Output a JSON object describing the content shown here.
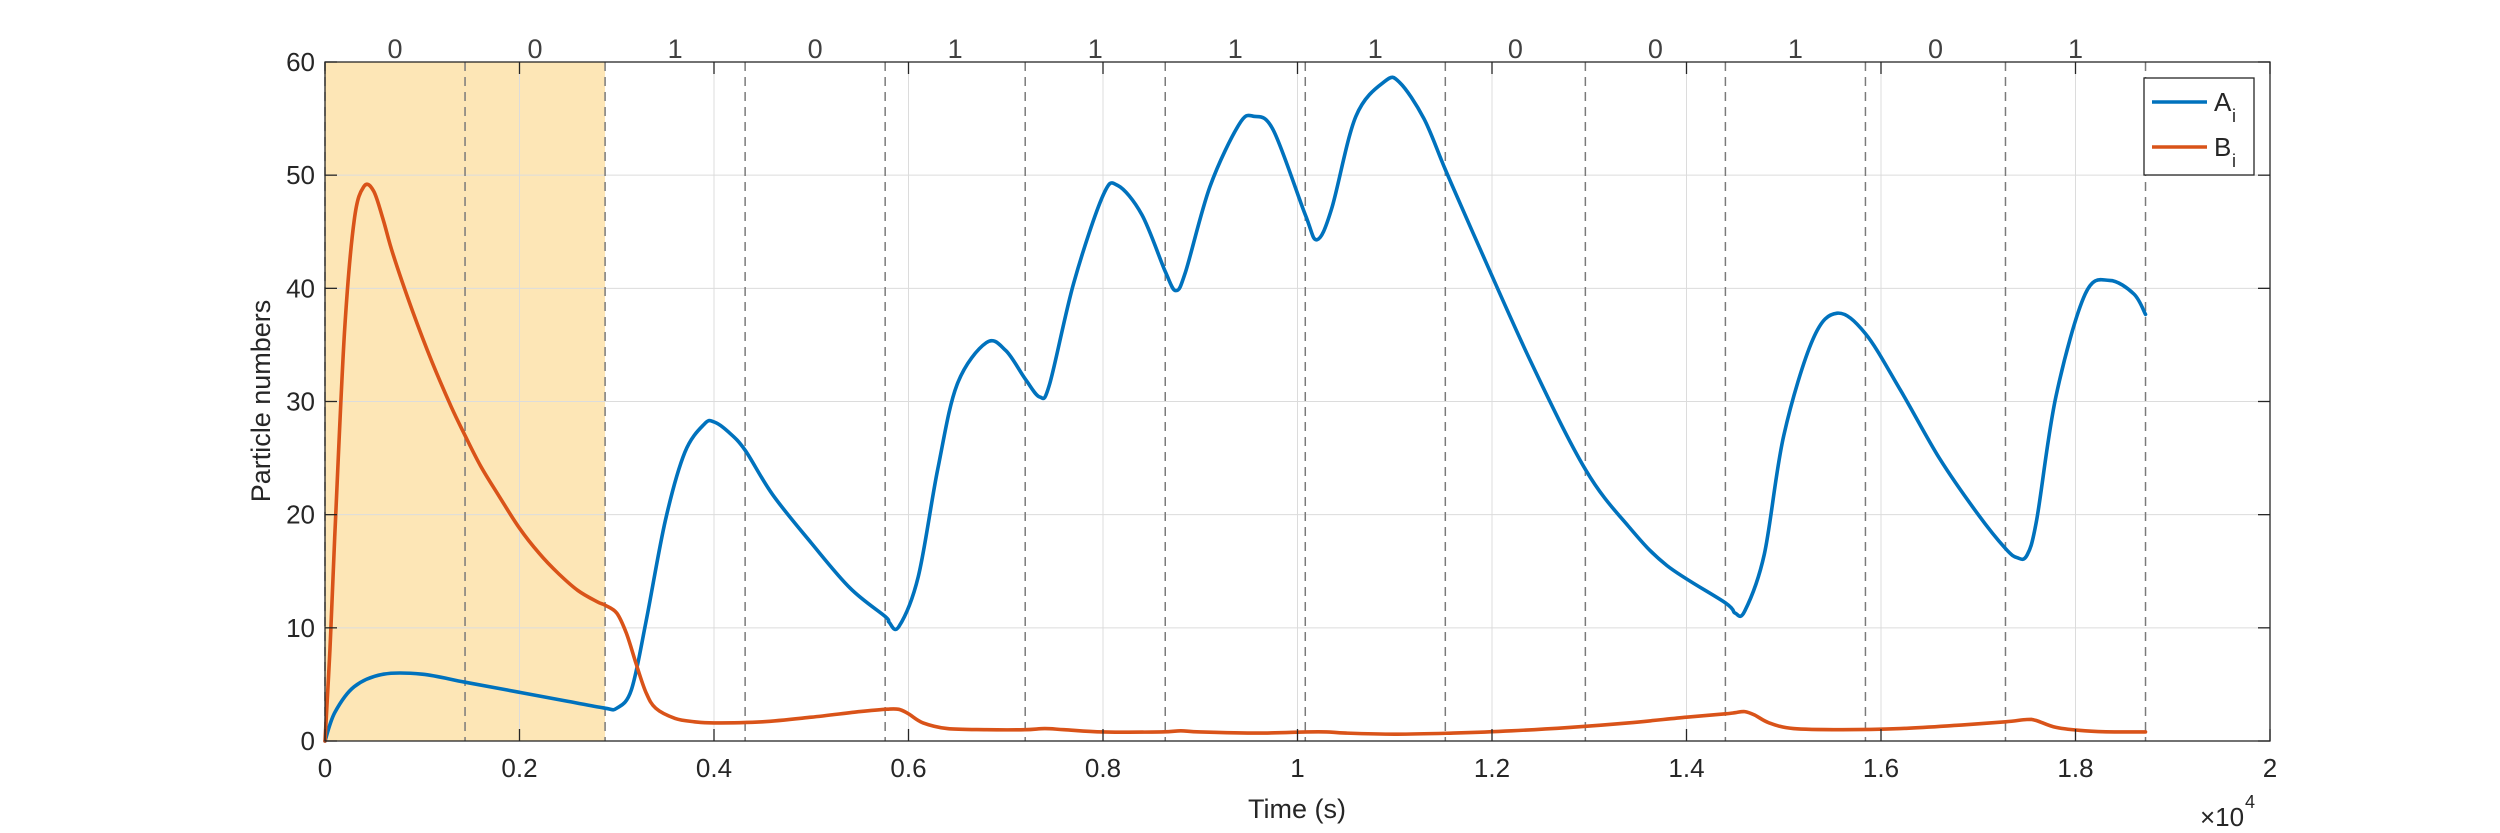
{
  "chart_data": {
    "type": "line",
    "xlabel": "Time (s)",
    "ylabel": "Particle numbers",
    "xlim": [
      0,
      20000
    ],
    "ylim": [
      0,
      60
    ],
    "x_ticks": [
      0,
      2000,
      4000,
      6000,
      8000,
      10000,
      12000,
      14000,
      16000,
      18000,
      20000
    ],
    "x_tick_labels": [
      "0",
      "0.2",
      "0.4",
      "0.6",
      "0.8",
      "1",
      "1.2",
      "1.4",
      "1.6",
      "1.8",
      "2"
    ],
    "y_ticks": [
      0,
      10,
      20,
      30,
      40,
      50,
      60
    ],
    "y_tick_labels": [
      "0",
      "10",
      "20",
      "30",
      "40",
      "50",
      "60"
    ],
    "x_exponent": {
      "base": "×10",
      "power": "4"
    },
    "grid": true,
    "legend_position": "top-right",
    "highlight": {
      "x": [
        0,
        2880
      ],
      "color": "#FDE6B6"
    },
    "boundaries": [
      0,
      1440,
      2880,
      4320,
      5760,
      7200,
      8640,
      10080,
      11520,
      12960,
      14400,
      15840,
      17280,
      18720
    ],
    "bits": [
      "0",
      "0",
      "1",
      "0",
      "1",
      "1",
      "1",
      "1",
      "0",
      "0",
      "1",
      "0",
      "1"
    ],
    "series": [
      {
        "name": "A",
        "name_sub": "i",
        "color": "#0072BD",
        "x": [
          0,
          100,
          300,
          600,
          1000,
          1440,
          2000,
          2500,
          2880,
          3000,
          3150,
          3300,
          3500,
          3700,
          3900,
          4000,
          4150,
          4320,
          4600,
          5000,
          5400,
          5760,
          5800,
          5900,
          6100,
          6300,
          6500,
          6800,
          7000,
          7200,
          7350,
          7450,
          7700,
          8000,
          8150,
          8400,
          8640,
          8750,
          8850,
          9100,
          9400,
          9550,
          9750,
          10080,
          10200,
          10350,
          10600,
          10900,
          11050,
          11300,
          11520,
          11800,
          12400,
          12960,
          13400,
          13800,
          14400,
          14500,
          14600,
          14800,
          15000,
          15300,
          15550,
          15840,
          16200,
          16600,
          17000,
          17280,
          17400,
          17500,
          17600,
          17800,
          18100,
          18350,
          18600,
          18720
        ],
        "y": [
          0,
          2.5,
          4.8,
          5.9,
          5.9,
          5.2,
          4.3,
          3.5,
          2.9,
          2.9,
          4.5,
          10.5,
          19.5,
          25.5,
          28,
          28.2,
          27.3,
          25.7,
          21.8,
          17.5,
          13.5,
          11,
          10.5,
          10.1,
          14.5,
          24,
          31.5,
          35.2,
          34.5,
          32,
          30.4,
          31.5,
          40.5,
          48.2,
          49.1,
          46.5,
          41.5,
          39.8,
          41.5,
          49,
          54.5,
          55.2,
          54,
          46.5,
          44.3,
          47,
          55.2,
          58.3,
          58.2,
          55,
          50.5,
          45,
          33.5,
          24,
          19,
          15.5,
          12.2,
          11.3,
          11.5,
          16.5,
          27,
          35.5,
          37.8,
          36,
          31,
          25,
          20,
          17,
          16.2,
          16.4,
          19.5,
          30.5,
          39.5,
          40.7,
          39.5,
          37.7
        ]
      },
      {
        "name": "B",
        "name_sub": "i",
        "color": "#D95319",
        "x": [
          0,
          50,
          100,
          200,
          300,
          400,
          500,
          600,
          700,
          900,
          1100,
          1300,
          1440,
          1600,
          1800,
          2000,
          2200,
          2400,
          2600,
          2800,
          2880,
          3000,
          3100,
          3200,
          3300,
          3400,
          3600,
          3800,
          4000,
          4500,
          5000,
          5500,
          5760,
          5900,
          6000,
          6150,
          6400,
          6800,
          7200,
          7400,
          7600,
          8000,
          8600,
          8800,
          9000,
          9600,
          10100,
          10300,
          10500,
          11000,
          11600,
          12200,
          12800,
          13400,
          14000,
          14400,
          14500,
          14600,
          14700,
          14850,
          15100,
          15600,
          16200,
          16800,
          17280,
          17500,
          17600,
          17800,
          18100,
          18400,
          18720
        ],
        "y": [
          0,
          8,
          18,
          36,
          46,
          49,
          48.6,
          46,
          43,
          38,
          33.5,
          29.5,
          27,
          24.3,
          21.5,
          18.8,
          16.6,
          14.8,
          13.3,
          12.3,
          12,
          11.3,
          9.5,
          6.8,
          4.3,
          2.9,
          2,
          1.7,
          1.6,
          1.7,
          2.1,
          2.6,
          2.8,
          2.8,
          2.4,
          1.6,
          1.1,
          1,
          1,
          1.1,
          1,
          0.8,
          0.8,
          0.9,
          0.8,
          0.7,
          0.8,
          0.8,
          0.7,
          0.6,
          0.7,
          0.9,
          1.2,
          1.6,
          2.1,
          2.4,
          2.5,
          2.6,
          2.3,
          1.6,
          1.1,
          1,
          1.1,
          1.4,
          1.7,
          1.9,
          1.8,
          1.2,
          0.9,
          0.8,
          0.8
        ]
      }
    ]
  }
}
